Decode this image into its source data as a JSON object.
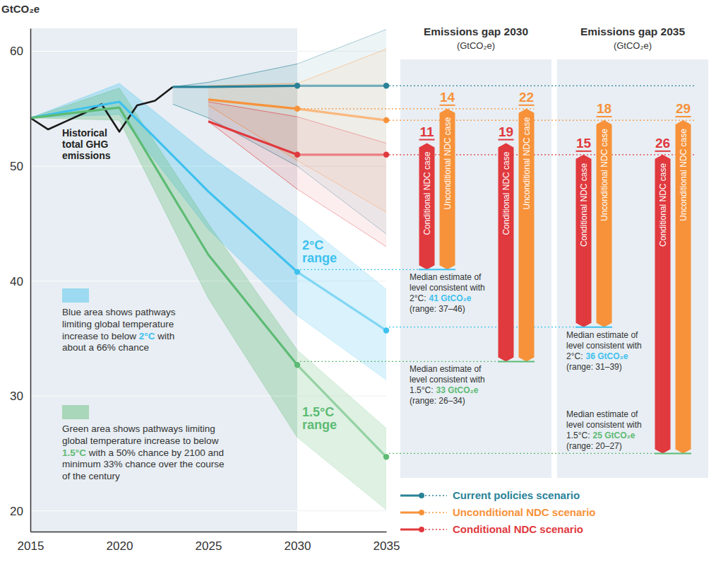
{
  "chart_data": {
    "type": "line",
    "y_label": "GtCO₂e",
    "xlim": [
      2015,
      2035
    ],
    "xticks": [
      2015,
      2020,
      2025,
      2030,
      2035
    ],
    "ylim": [
      18.2,
      62
    ],
    "yticks": [
      20,
      30,
      40,
      50,
      60
    ],
    "grid": true,
    "legend": "bottom-right",
    "series": [
      {
        "name": "Historical total GHG emissions",
        "type": "line",
        "color": "#1a1a1a",
        "x": [
          2015,
          2016,
          2017,
          2018,
          2019,
          2020,
          2021,
          2022,
          2023
        ],
        "values": [
          54.2,
          53.2,
          53.9,
          54.6,
          55.4,
          53.0,
          55.3,
          55.7,
          56.9
        ]
      },
      {
        "name": "2°C range",
        "type": "area",
        "color": "#3ec1ee",
        "marker": "circle",
        "x": [
          2015,
          2020,
          2025,
          2030,
          2035
        ],
        "values": [
          54.2,
          55.6,
          47.8,
          40.8,
          35.7
        ],
        "range_low": [
          54.2,
          54.5,
          44.5,
          37.0,
          31.4
        ],
        "range_high": [
          54.2,
          57.2,
          51.0,
          45.5,
          39.3
        ]
      },
      {
        "name": "1.5°C range",
        "type": "area",
        "color": "#5dbb74",
        "marker": "circle",
        "x": [
          2015,
          2020,
          2025,
          2030,
          2035
        ],
        "values": [
          54.2,
          55.1,
          42.3,
          32.7,
          24.7
        ],
        "range_low": [
          54.2,
          54.0,
          38.5,
          26.4,
          20.1
        ],
        "range_high": [
          54.2,
          56.8,
          45.0,
          34.0,
          27.2
        ]
      },
      {
        "name": "Current policies scenario",
        "type": "line",
        "color": "#2a8298",
        "marker": "circle",
        "x": [
          2023,
          2025,
          2030,
          2035
        ],
        "values": [
          56.9,
          56.9,
          57.0,
          57.0
        ],
        "range_low": [
          55.4,
          54.2,
          50.0,
          44.1
        ],
        "range_high": [
          56.9,
          57.3,
          58.9,
          61.9
        ]
      },
      {
        "name": "Unconditional NDC scenario",
        "type": "line",
        "color": "#f7923a",
        "marker": "circle",
        "x": [
          2025,
          2030,
          2035
        ],
        "values": [
          55.8,
          55.0,
          54.0
        ],
        "range_low": [
          55.3,
          50.5,
          46.0
        ],
        "range_high": [
          57.0,
          57.2,
          60.2
        ]
      },
      {
        "name": "Conditional NDC scenario",
        "type": "line",
        "color": "#e0393e",
        "marker": "circle",
        "x": [
          2025,
          2030,
          2035
        ],
        "values": [
          53.9,
          51.0,
          51.0
        ],
        "range_low": [
          53.9,
          48.0,
          43.0
        ],
        "range_high": [
          55.6,
          54.3,
          52.0
        ]
      }
    ],
    "gap_panels": [
      {
        "title": "Emissions gap 2030",
        "unit": "(GtCO₂e)",
        "year": 2030,
        "groups": [
          {
            "target": {
              "lines": [
                "Median estimate of",
                "level consistent with"
              ],
              "label": "2°C:",
              "value": 41,
              "value_label": "41 GtCO₂e",
              "range_label": "(range: 37–46)",
              "color": "#3ec1ee"
            },
            "bars": [
              {
                "name": "Conditional NDC case",
                "value": 11,
                "color": "#e0393e"
              },
              {
                "name": "Unconditional NDC case",
                "value": 14,
                "color": "#f7923a"
              }
            ]
          },
          {
            "target": {
              "lines": [
                "Median estimate of",
                "level consistent with"
              ],
              "label": "1.5°C:",
              "value": 33,
              "value_label": "33 GtCO₂e",
              "range_label": "(range: 26–34)",
              "color": "#5dbb74"
            },
            "bars": [
              {
                "name": "Conditional NDC case",
                "value": 19,
                "color": "#e0393e"
              },
              {
                "name": "Unconditional NDC case",
                "value": 22,
                "color": "#f7923a"
              }
            ]
          }
        ]
      },
      {
        "title": "Emissions gap 2035",
        "unit": "(GtCO₂e)",
        "year": 2035,
        "groups": [
          {
            "target": {
              "lines": [
                "Median estimate of",
                "level consistent with"
              ],
              "label": "2°C:",
              "value": 36,
              "value_label": "36 GtCO₂e",
              "range_label": "(range: 31–39)",
              "color": "#3ec1ee"
            },
            "bars": [
              {
                "name": "Conditional NDC case",
                "value": 15,
                "color": "#e0393e"
              },
              {
                "name": "Unconditional NDC case",
                "value": 18,
                "color": "#f7923a"
              }
            ]
          },
          {
            "target": {
              "lines": [
                "Median estimate of",
                "level consistent with"
              ],
              "label": "1.5°C:",
              "value": 25,
              "value_label": "25 GtCO₂e",
              "range_label": "(range: 20–27)",
              "color": "#5dbb74"
            },
            "bars": [
              {
                "name": "Conditional NDC case",
                "value": 26,
                "color": "#e0393e"
              },
              {
                "name": "Unconditional NDC case",
                "value": 29,
                "color": "#f7923a"
              }
            ]
          }
        ]
      }
    ],
    "annotations": [
      {
        "lines": [
          "Blue area shows pathways",
          "limiting global temperature",
          "increase to below 2°C with",
          "about a 66% chance"
        ],
        "emphasis": "2°C",
        "color": "#3ec1ee"
      },
      {
        "lines": [
          "Green area shows pathways limiting",
          "global temperature increase to below",
          "1.5°C with a 50% chance by 2100 and",
          "minimum 33% chance over the course",
          "of the century"
        ],
        "emphasis": "1.5°C",
        "color": "#5dbb74"
      }
    ]
  }
}
